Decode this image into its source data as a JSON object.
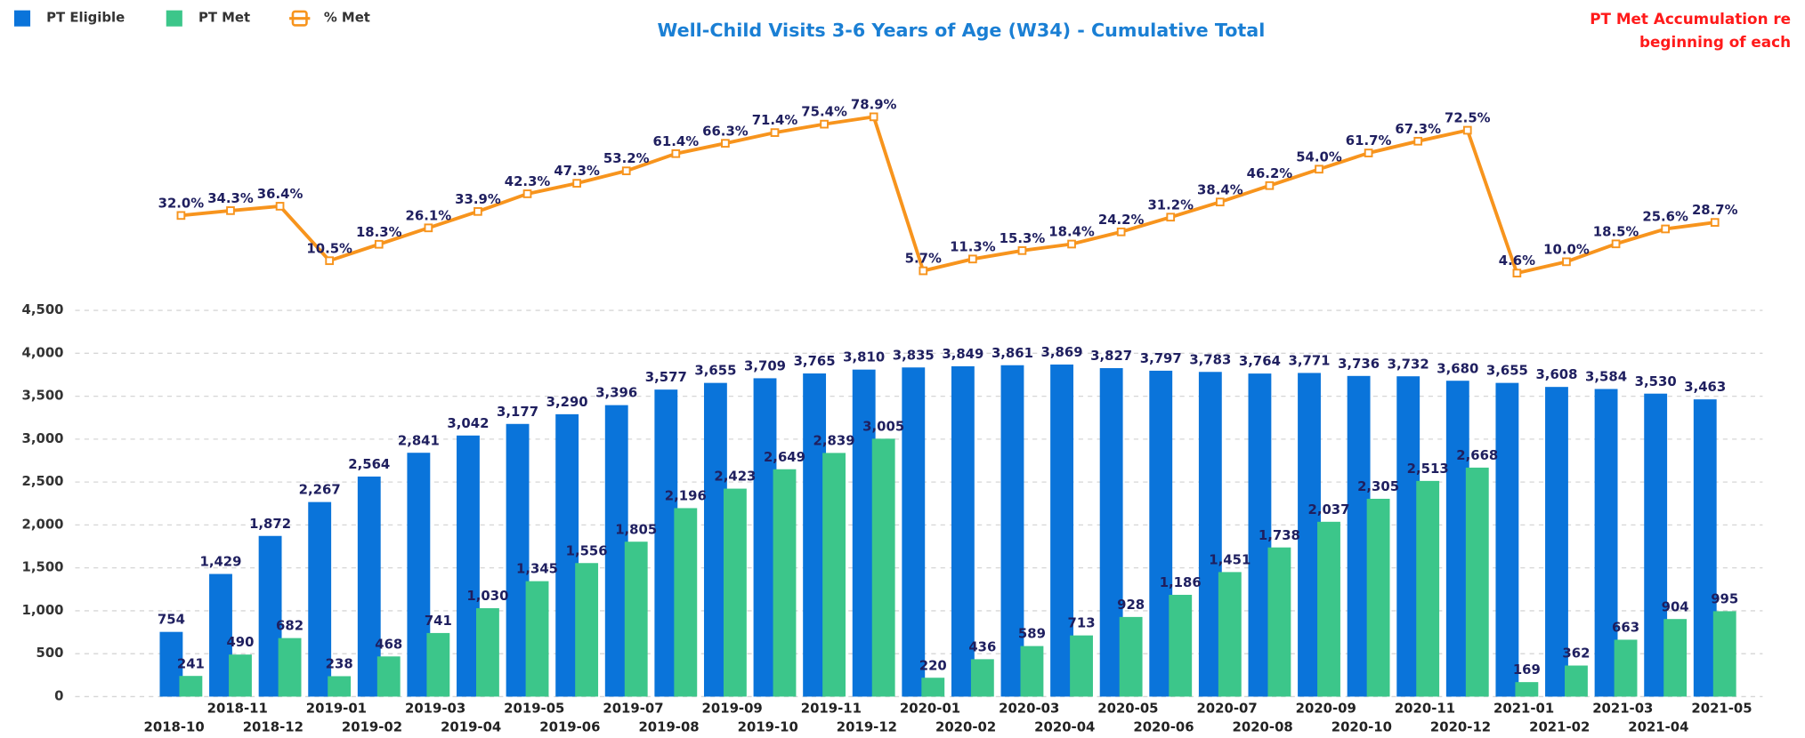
{
  "chart_data": {
    "type": "bar",
    "title": "Well-Child Visits 3-6 Years of Age (W34) - Cumulative Total",
    "notes": [
      "PT Met Accumulation re",
      "beginning of each"
    ],
    "categories": [
      "2018-10",
      "2018-11",
      "2018-12",
      "2019-01",
      "2019-02",
      "2019-03",
      "2019-04",
      "2019-05",
      "2019-06",
      "2019-07",
      "2019-08",
      "2019-09",
      "2019-10",
      "2019-11",
      "2019-12",
      "2020-01",
      "2020-02",
      "2020-03",
      "2020-04",
      "2020-05",
      "2020-06",
      "2020-07",
      "2020-08",
      "2020-09",
      "2020-10",
      "2020-11",
      "2020-12",
      "2021-01",
      "2021-02",
      "2021-03",
      "2021-04",
      "2021-05"
    ],
    "series": [
      {
        "name": "PT Eligible",
        "type": "bar",
        "color": "#0a74da",
        "values": [
          754,
          1429,
          1872,
          2267,
          2564,
          2841,
          3042,
          3177,
          3290,
          3396,
          3577,
          3655,
          3709,
          3765,
          3810,
          3835,
          3849,
          3861,
          3869,
          3827,
          3797,
          3783,
          3764,
          3771,
          3736,
          3732,
          3680,
          3655,
          3608,
          3584,
          3530,
          3463
        ],
        "value_labels": [
          "754",
          "1,429",
          "1,872",
          "2,267",
          "2,564",
          "2,841",
          "3,042",
          "3,177",
          "3,290",
          "3,396",
          "3,577",
          "3,655",
          "3,709",
          "3,765",
          "3,810",
          "3,835",
          "3,849",
          "3,861",
          "3,869",
          "3,827",
          "3,797",
          "3,783",
          "3,764",
          "3,771",
          "3,736",
          "3,732",
          "3,680",
          "3,655",
          "3,608",
          "3,584",
          "3,530",
          "3,463"
        ]
      },
      {
        "name": "PT Met",
        "type": "bar",
        "color": "#3cc68a",
        "values": [
          241,
          490,
          682,
          238,
          468,
          741,
          1030,
          1345,
          1556,
          1805,
          2196,
          2423,
          2649,
          2839,
          3005,
          220,
          436,
          589,
          713,
          928,
          1186,
          1451,
          1738,
          2037,
          2305,
          2513,
          2668,
          169,
          362,
          663,
          904,
          995
        ],
        "value_labels": [
          "241",
          "490",
          "682",
          "238",
          "468",
          "741",
          "1,030",
          "1,345",
          "1,556",
          "1,805",
          "2,196",
          "2,423",
          "2,649",
          "2,839",
          "3,005",
          "220",
          "436",
          "589",
          "713",
          "928",
          "1,186",
          "1,451",
          "1,738",
          "2,037",
          "2,305",
          "2,513",
          "2,668",
          "169",
          "362",
          "663",
          "904",
          "995"
        ]
      },
      {
        "name": "% Met",
        "type": "line",
        "axis": "y2",
        "color": "#f7941d",
        "values": [
          32.0,
          34.3,
          36.4,
          10.5,
          18.3,
          26.1,
          33.9,
          42.3,
          47.3,
          53.2,
          61.4,
          66.3,
          71.4,
          75.4,
          78.9,
          5.7,
          11.3,
          15.3,
          18.4,
          24.2,
          31.2,
          38.4,
          46.2,
          54.0,
          61.7,
          67.3,
          72.5,
          4.6,
          10.0,
          18.5,
          25.6,
          28.7
        ],
        "value_labels": [
          "32.0%",
          "34.3%",
          "36.4%",
          "10.5%",
          "18.3%",
          "26.1%",
          "33.9%",
          "42.3%",
          "47.3%",
          "53.2%",
          "61.4%",
          "66.3%",
          "71.4%",
          "75.4%",
          "78.9%",
          "5.7%",
          "11.3%",
          "15.3%",
          "18.4%",
          "24.2%",
          "31.2%",
          "38.4%",
          "46.2%",
          "54.0%",
          "61.7%",
          "67.3%",
          "72.5%",
          "4.6%",
          "10.0%",
          "18.5%",
          "25.6%",
          "28.7%"
        ]
      }
    ],
    "ylim": [
      0,
      4500
    ],
    "yticks": [
      0,
      500,
      {
        "value": 1000,
        "label": "1,000"
      },
      {
        "value": 1500,
        "label": "1,500"
      },
      {
        "value": 2000,
        "label": "2,000"
      },
      {
        "value": 2500,
        "label": "2,500"
      },
      {
        "value": 3000,
        "label": "3,000"
      },
      {
        "value": 3500,
        "label": "3,500"
      },
      {
        "value": 4000,
        "label": "4,000"
      },
      {
        "value": 4500,
        "label": "4,500"
      }
    ],
    "y2lim": [
      0,
      100
    ],
    "grid": true,
    "legend": "top-left"
  }
}
